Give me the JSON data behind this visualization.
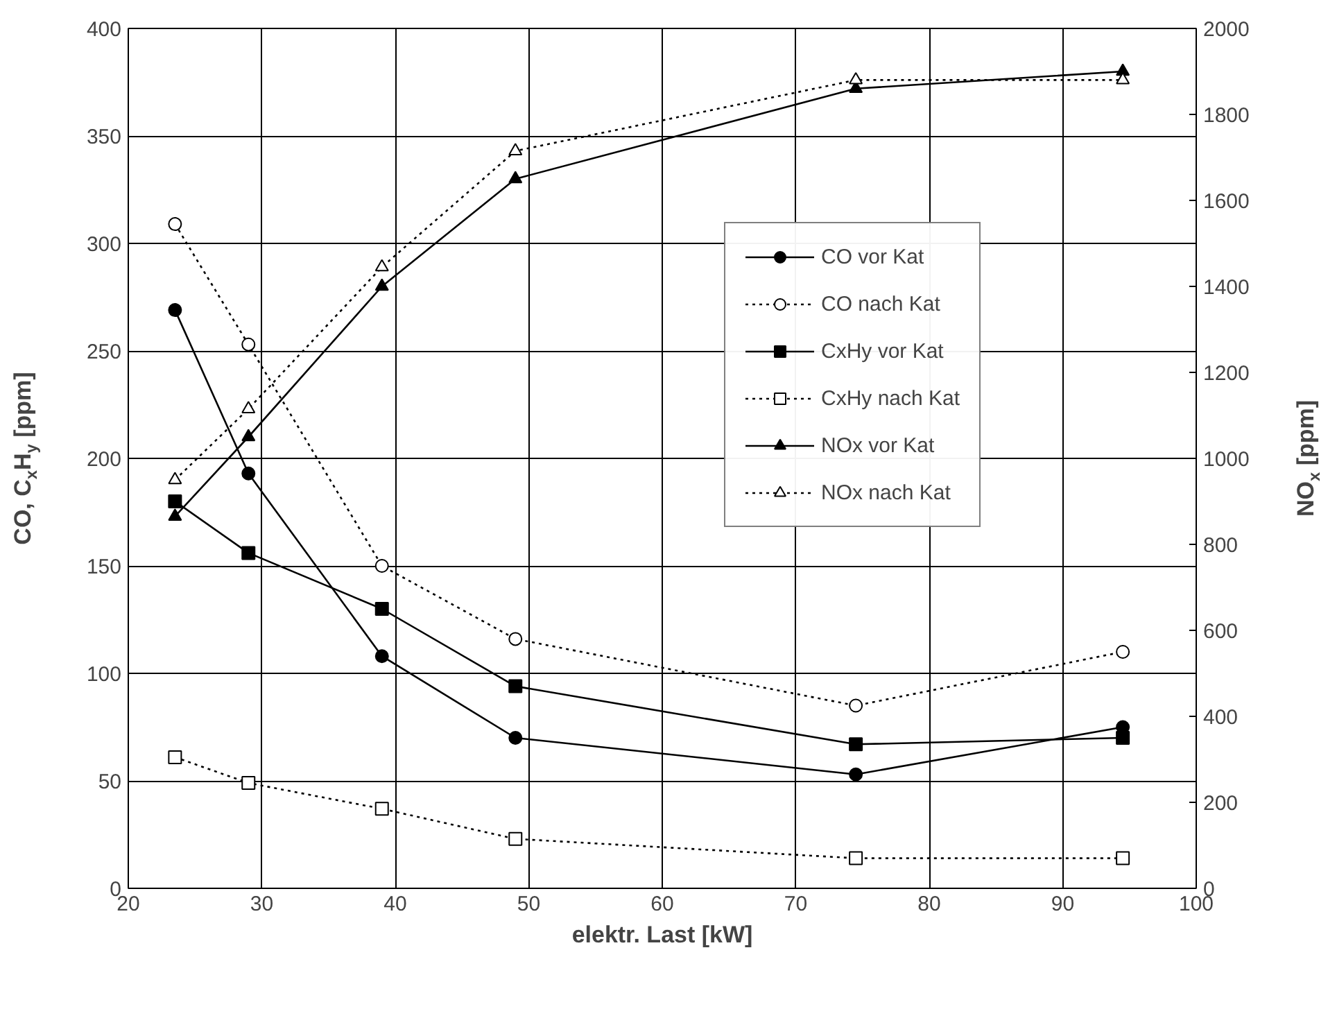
{
  "chart_data": {
    "type": "line",
    "xlabel": "elektr. Last [kW]",
    "ylabel": "CO, C$_{x}$H$_{y}$ [ppm]",
    "y2label": "NO$_{x}$ [ppm]",
    "xlim": [
      20,
      100
    ],
    "xticks": [
      20,
      30,
      40,
      50,
      60,
      70,
      80,
      90,
      100
    ],
    "ylim": [
      0,
      400
    ],
    "yticks": [
      0,
      50,
      100,
      150,
      200,
      250,
      300,
      350,
      400
    ],
    "y2lim": [
      0,
      2000
    ],
    "y2ticks": [
      0,
      200,
      400,
      600,
      800,
      1000,
      1200,
      1400,
      1600,
      1800,
      2000
    ],
    "grid": true,
    "legend": "right",
    "x": [
      23.5,
      29,
      39,
      49,
      74.5,
      94.5
    ],
    "series": [
      {
        "name": "CO vor Kat",
        "color": "#000000",
        "marker": "circle",
        "line_style": "solid",
        "values": [
          269,
          193,
          108,
          70,
          53,
          75
        ]
      },
      {
        "name": "CO nach Kat",
        "color": "#000000",
        "marker": "circle",
        "line_style": "dotted",
        "values": [
          309,
          253,
          150,
          116,
          85,
          110
        ]
      },
      {
        "name": "CxHy vor Kat",
        "color": "#000000",
        "marker": "square",
        "line_style": "solid",
        "values": [
          180,
          156,
          130,
          94,
          67,
          70
        ]
      },
      {
        "name": "CxHy nach Kat",
        "color": "#000000",
        "marker": "square",
        "line_style": "dotted",
        "values": [
          61,
          49,
          37,
          23,
          14,
          14
        ]
      },
      {
        "name": "NOx vor Kat",
        "color": "#000000",
        "marker": "triangle",
        "line_style": "solid",
        "axis": "y2",
        "values": [
          865,
          1050,
          1400,
          1650,
          1860,
          1900
        ]
      },
      {
        "name": "NOx nach Kat",
        "color": "#000000",
        "marker": "triangle",
        "line_style": "dotted",
        "axis": "y2",
        "values": [
          950,
          1115,
          1445,
          1715,
          1880,
          1880
        ]
      }
    ]
  }
}
